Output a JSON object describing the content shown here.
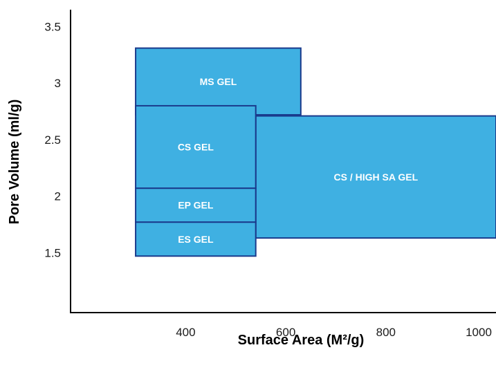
{
  "chart_data": {
    "type": "area",
    "xlabel": "Surface Area (M²/g)",
    "ylabel": "Pore Volume (ml/g)",
    "xlim": [
      170,
      1020
    ],
    "ylim": [
      0.97,
      3.65
    ],
    "x_ticks": [
      {
        "value": 400,
        "label": "400"
      },
      {
        "value": 600,
        "label": "600"
      },
      {
        "value": 800,
        "label": "800"
      },
      {
        "value": 1000,
        "label": "1000"
      }
    ],
    "y_ticks": [
      {
        "value": 1.5,
        "label": "1.5"
      },
      {
        "value": 2,
        "label": "2"
      },
      {
        "value": 2.5,
        "label": "2.5"
      },
      {
        "value": 3,
        "label": "3"
      },
      {
        "value": 3.5,
        "label": "3.5"
      }
    ],
    "regions": [
      {
        "name": "MS GEL",
        "x": [
          300,
          630
        ],
        "y": [
          2.72,
          3.31
        ]
      },
      {
        "name": "CS / HIGH SA  GEL",
        "x": [
          540,
          1020
        ],
        "y": [
          1.63,
          2.71
        ]
      },
      {
        "name": "CS GEL",
        "x": [
          300,
          540
        ],
        "y": [
          2.07,
          2.8
        ]
      },
      {
        "name": "EP GEL",
        "x": [
          300,
          540
        ],
        "y": [
          1.77,
          2.07
        ]
      },
      {
        "name": "ES GEL",
        "x": [
          300,
          540
        ],
        "y": [
          1.47,
          1.77
        ]
      }
    ],
    "fill_color": "#3fb0e2",
    "stroke_color": "#1a3a8c"
  }
}
